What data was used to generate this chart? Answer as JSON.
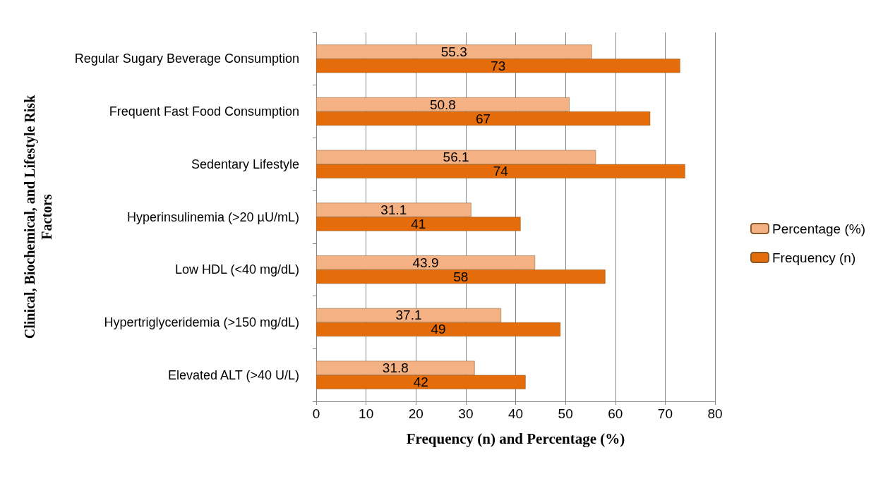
{
  "chart_data": {
    "type": "bar",
    "orientation": "horizontal",
    "xlabel": "Frequency (n) and Percentage (%)",
    "ylabel": "Clinical, Biochemical, and Lifestyle Risk Factors",
    "categories": [
      "Regular Sugary Beverage Consumption",
      "Frequent Fast Food Consumption",
      "Sedentary Lifestyle",
      "Hyperinsulinemia (>20 µU/mL)",
      "Low HDL (<40 mg/dL)",
      "Hypertriglyceridemia (>150 mg/dL)",
      "Elevated ALT (>40 U/L)"
    ],
    "series": [
      {
        "name": "Percentage (%)",
        "color": "#f4b183",
        "values": [
          55.3,
          50.8,
          56.1,
          31.1,
          43.9,
          37.1,
          31.8
        ]
      },
      {
        "name": "Frequency (n)",
        "color": "#e46c0a",
        "values": [
          73,
          67,
          74,
          41,
          58,
          49,
          42
        ]
      }
    ],
    "xlim": [
      0,
      80
    ],
    "xticks": [
      0,
      10,
      20,
      30,
      40,
      50,
      60,
      70,
      80
    ],
    "grid": "x",
    "legend": "right",
    "data_labels": true
  }
}
